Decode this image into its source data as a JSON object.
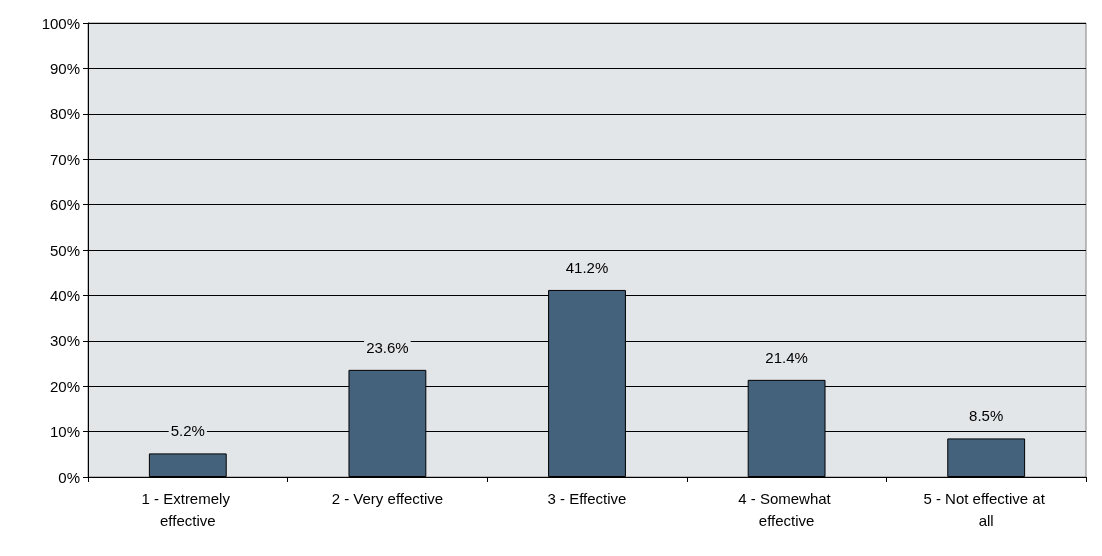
{
  "chart_data": {
    "type": "bar",
    "categories": [
      "1 - Extremely effective",
      "2 - Very effective",
      "3 - Effective",
      "4 - Somewhat effective",
      "5 - Not effective at all"
    ],
    "values": [
      5.2,
      23.6,
      41.2,
      21.4,
      8.5
    ],
    "value_labels": [
      "5.2%",
      "23.6%",
      "41.2%",
      "21.4%",
      "8.5%"
    ],
    "color": "#44627c",
    "ylim": [
      0,
      100
    ],
    "yticks": [
      {
        "value": 0,
        "label": "0%"
      },
      {
        "value": 10,
        "label": "10%"
      },
      {
        "value": 20,
        "label": "20%"
      },
      {
        "value": 30,
        "label": "30%"
      },
      {
        "value": 40,
        "label": "40%"
      },
      {
        "value": 50,
        "label": "50%"
      },
      {
        "value": 60,
        "label": "60%"
      },
      {
        "value": 70,
        "label": "70%"
      },
      {
        "value": 80,
        "label": "80%"
      },
      {
        "value": 90,
        "label": "90%"
      },
      {
        "value": 100,
        "label": "100%"
      }
    ],
    "grid": "y"
  }
}
